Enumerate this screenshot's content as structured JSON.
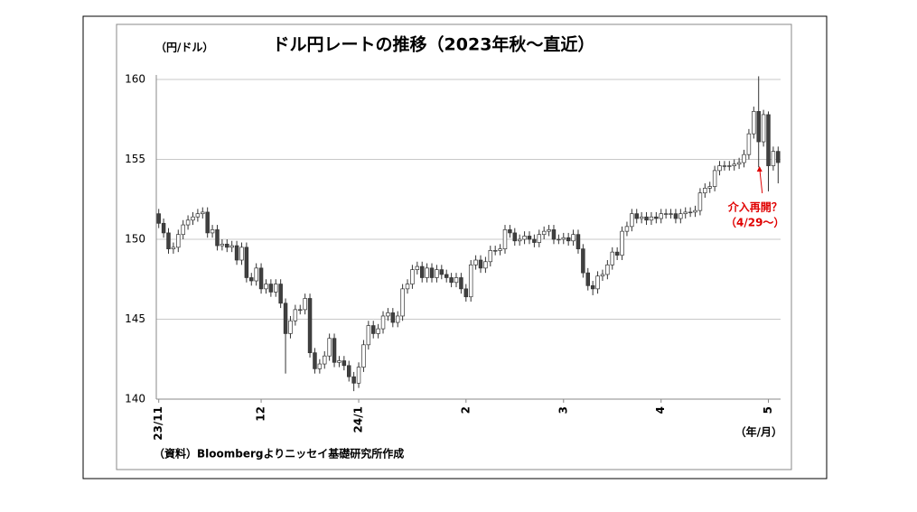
{
  "chart_data": {
    "type": "candlestick",
    "title": "ドル円レートの推移（2023年秋～直近）",
    "y_label": "（円/ドル）",
    "x_label": "（年/月）",
    "source": "（資料）Bloombergよりニッセイ基礎研究所作成",
    "annotation": {
      "lines": [
        "介入再開？",
        "（4/29～）"
      ],
      "index": 123
    },
    "ylim": [
      140,
      160
    ],
    "yticks": [
      140,
      145,
      150,
      155,
      160
    ],
    "grid": true,
    "xlim": [
      -0.5,
      127.5
    ],
    "xticks": [
      {
        "value": 0,
        "label": "23/11"
      },
      {
        "value": 21,
        "label": "12"
      },
      {
        "value": 41,
        "label": "24/1"
      },
      {
        "value": 63,
        "label": "2"
      },
      {
        "value": 83,
        "label": "3"
      },
      {
        "value": 103,
        "label": "4"
      },
      {
        "value": 125,
        "label": "5"
      }
    ],
    "up_color": "#ffffff",
    "down_color": "#404040",
    "edge_color": "#333333",
    "open": [
      151.6,
      151.0,
      150.4,
      149.4,
      149.5,
      150.3,
      150.9,
      151.2,
      151.4,
      151.6,
      151.7,
      150.4,
      150.6,
      149.6,
      149.7,
      149.5,
      149.6,
      148.7,
      149.5,
      147.6,
      147.4,
      148.2,
      146.9,
      147.2,
      146.7,
      147.2,
      146.0,
      144.1,
      144.9,
      145.6,
      145.6,
      146.3,
      142.9,
      141.9,
      142.2,
      142.7,
      143.8,
      142.3,
      142.4,
      142.1,
      141.4,
      141.0,
      142.0,
      143.4,
      144.6,
      144.1,
      144.4,
      145.2,
      145.4,
      144.8,
      145.2,
      146.9,
      147.2,
      148.1,
      148.3,
      147.6,
      148.2,
      147.6,
      148.1,
      147.8,
      147.6,
      147.3,
      147.6,
      146.9,
      146.4,
      148.4,
      148.7,
      148.2,
      148.6,
      149.3,
      149.3,
      149.4,
      150.6,
      150.4,
      149.9,
      150.0,
      150.2,
      150.0,
      149.8,
      150.3,
      150.5,
      150.6,
      150.0,
      150.0,
      150.1,
      149.9,
      150.3,
      149.4,
      147.9,
      147.1,
      146.9,
      147.7,
      147.8,
      148.4,
      149.2,
      149.0,
      150.5,
      150.8,
      151.6,
      151.3,
      151.4,
      151.2,
      151.4,
      151.3,
      151.6,
      151.6,
      151.6,
      151.3,
      151.6,
      151.7,
      151.7,
      151.8,
      152.9,
      153.2,
      153.3,
      154.3,
      154.6,
      154.6,
      154.6,
      154.7,
      154.8,
      155.3,
      156.6,
      158.0,
      156.1,
      157.8,
      154.6,
      155.5
    ],
    "high": [
      151.9,
      151.3,
      150.7,
      149.8,
      150.6,
      151.2,
      151.5,
      151.7,
      151.9,
      152.0,
      152.0,
      150.9,
      150.9,
      150.0,
      150.0,
      149.9,
      149.9,
      149.8,
      149.8,
      147.9,
      148.5,
      148.5,
      147.5,
      147.5,
      147.5,
      147.5,
      146.3,
      145.2,
      145.9,
      145.9,
      146.6,
      146.6,
      143.2,
      142.5,
      143.0,
      144.1,
      144.1,
      142.7,
      142.7,
      142.4,
      141.7,
      142.3,
      143.7,
      144.9,
      144.9,
      144.7,
      145.5,
      145.7,
      145.7,
      145.5,
      147.2,
      147.5,
      148.4,
      148.6,
      148.6,
      148.5,
      148.5,
      148.4,
      148.4,
      148.1,
      147.9,
      147.9,
      147.9,
      147.2,
      148.7,
      149.0,
      149.0,
      148.9,
      149.6,
      149.6,
      149.7,
      150.9,
      150.9,
      150.7,
      150.3,
      150.5,
      150.5,
      150.3,
      150.6,
      150.8,
      150.9,
      150.9,
      150.3,
      150.4,
      150.4,
      150.6,
      150.6,
      149.7,
      148.2,
      147.4,
      148.0,
      148.1,
      148.7,
      149.5,
      149.5,
      150.8,
      151.1,
      151.9,
      151.9,
      151.7,
      151.7,
      151.7,
      151.7,
      151.9,
      151.9,
      151.9,
      151.9,
      151.9,
      152.0,
      152.0,
      152.1,
      153.2,
      153.5,
      153.6,
      154.6,
      154.9,
      154.9,
      154.9,
      155.0,
      155.1,
      155.6,
      156.9,
      158.3,
      160.2,
      158.1,
      158.0,
      155.8,
      155.8
    ],
    "low": [
      150.7,
      150.1,
      149.1,
      149.1,
      149.2,
      150.0,
      150.6,
      150.9,
      151.1,
      151.3,
      150.1,
      150.1,
      149.3,
      149.3,
      149.2,
      149.2,
      148.4,
      148.4,
      147.3,
      147.1,
      147.1,
      146.6,
      146.6,
      146.4,
      146.4,
      145.7,
      141.6,
      143.8,
      144.6,
      145.3,
      145.3,
      142.6,
      141.6,
      141.6,
      141.9,
      142.4,
      142.0,
      142.0,
      141.8,
      141.1,
      140.5,
      140.7,
      141.7,
      143.1,
      143.8,
      143.8,
      144.1,
      144.9,
      144.5,
      144.5,
      144.9,
      146.6,
      146.9,
      147.8,
      147.3,
      147.3,
      147.3,
      147.3,
      147.5,
      147.3,
      147.0,
      147.0,
      146.6,
      146.1,
      146.1,
      148.1,
      147.9,
      147.9,
      148.3,
      149.0,
      149.0,
      149.1,
      150.1,
      149.6,
      149.6,
      149.7,
      149.7,
      149.5,
      149.5,
      150.0,
      150.2,
      149.7,
      149.7,
      149.7,
      149.6,
      149.6,
      149.1,
      147.6,
      146.8,
      146.5,
      146.6,
      147.4,
      147.5,
      148.1,
      148.7,
      148.7,
      150.2,
      150.5,
      151.0,
      151.0,
      150.9,
      150.9,
      151.0,
      151.0,
      151.3,
      151.3,
      151.0,
      151.0,
      151.3,
      151.4,
      151.4,
      151.5,
      152.6,
      152.9,
      153.0,
      154.0,
      154.3,
      154.3,
      154.3,
      154.4,
      154.5,
      155.0,
      156.3,
      154.5,
      155.8,
      153.0,
      154.3,
      153.5
    ],
    "close": [
      151.0,
      150.4,
      149.4,
      149.5,
      150.3,
      150.9,
      151.2,
      151.4,
      151.6,
      151.7,
      150.4,
      150.6,
      149.6,
      149.7,
      149.5,
      149.6,
      148.7,
      149.5,
      147.6,
      147.4,
      148.2,
      146.9,
      147.2,
      146.7,
      147.2,
      146.0,
      144.1,
      144.9,
      145.6,
      145.6,
      146.3,
      142.9,
      141.9,
      142.2,
      142.7,
      143.8,
      142.3,
      142.4,
      142.1,
      141.4,
      141.0,
      142.0,
      143.4,
      144.6,
      144.1,
      144.4,
      145.2,
      145.4,
      144.8,
      145.2,
      146.9,
      147.2,
      148.1,
      148.3,
      147.6,
      148.2,
      147.6,
      148.1,
      147.8,
      147.6,
      147.3,
      147.6,
      146.9,
      146.4,
      148.4,
      148.7,
      148.2,
      148.6,
      149.3,
      149.3,
      149.4,
      150.6,
      150.4,
      149.9,
      150.0,
      150.2,
      150.0,
      149.8,
      150.3,
      150.5,
      150.6,
      150.0,
      150.0,
      150.1,
      149.9,
      150.3,
      149.4,
      147.9,
      147.1,
      146.9,
      147.7,
      147.8,
      148.4,
      149.2,
      149.0,
      150.5,
      150.8,
      151.6,
      151.3,
      151.4,
      151.2,
      151.4,
      151.3,
      151.6,
      151.6,
      151.6,
      151.3,
      151.6,
      151.7,
      151.7,
      151.8,
      152.9,
      153.2,
      153.3,
      154.3,
      154.6,
      154.6,
      154.6,
      154.7,
      154.8,
      155.3,
      156.6,
      158.0,
      156.1,
      157.8,
      154.6,
      155.5,
      154.8
    ]
  }
}
